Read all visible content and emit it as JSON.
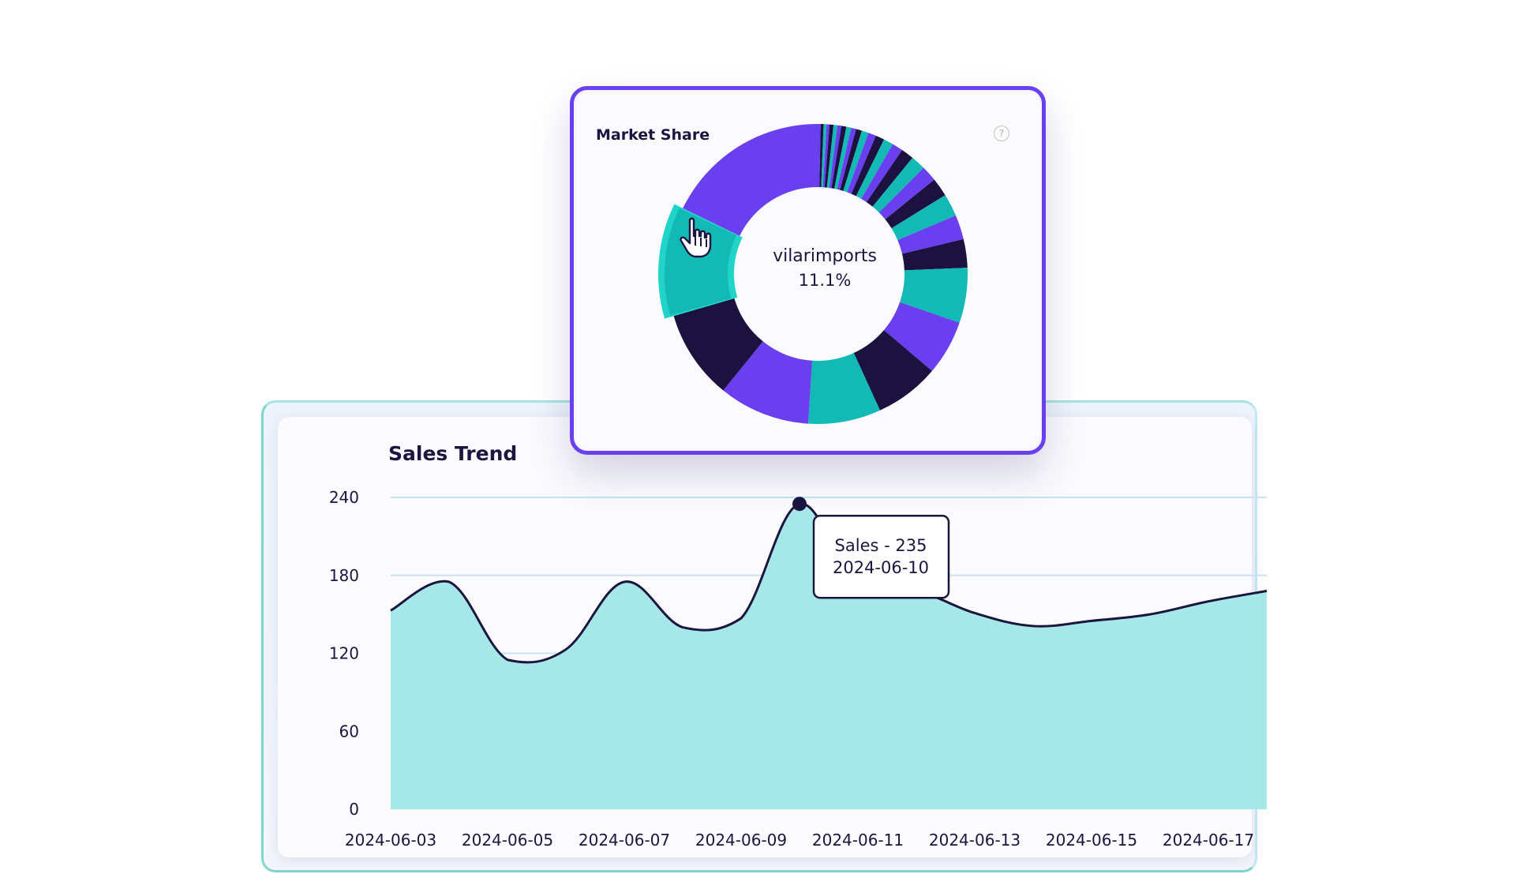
{
  "colors": {
    "purple": "#6a3ff0",
    "navy": "#1b1240",
    "teal": "#13bab5",
    "highlight": "#20d4c8",
    "area_fill": "#a6e8e8",
    "line": "#1b1640",
    "grid": "#c7e3f0"
  },
  "market_share": {
    "title": "Market Share",
    "help_icon": "question-circle-icon",
    "center_label": "vilarimports",
    "center_value": "11.1%",
    "cursor_icon": "hand-pointer-icon"
  },
  "sales_trend": {
    "title": "Sales Trend",
    "tooltip": {
      "label": "Sales - 235",
      "date": "2024-06-10"
    }
  },
  "chart_data": [
    {
      "type": "pie",
      "variant": "donut",
      "title": "Market Share",
      "highlighted": {
        "name": "vilarimports",
        "value": 11.1
      },
      "slices": [
        {
          "value": 0.3,
          "color": "#6a3ff0"
        },
        {
          "value": 0.3,
          "color": "#1b1240"
        },
        {
          "value": 0.3,
          "color": "#13bab5"
        },
        {
          "value": 0.3,
          "color": "#6a3ff0"
        },
        {
          "value": 0.4,
          "color": "#1b1240"
        },
        {
          "value": 0.4,
          "color": "#13bab5"
        },
        {
          "value": 0.4,
          "color": "#6a3ff0"
        },
        {
          "value": 0.5,
          "color": "#1b1240"
        },
        {
          "value": 0.5,
          "color": "#13bab5"
        },
        {
          "value": 0.5,
          "color": "#6a3ff0"
        },
        {
          "value": 0.6,
          "color": "#1b1240"
        },
        {
          "value": 0.7,
          "color": "#13bab5"
        },
        {
          "value": 0.8,
          "color": "#6a3ff0"
        },
        {
          "value": 0.9,
          "color": "#1b1240"
        },
        {
          "value": 1.0,
          "color": "#13bab5"
        },
        {
          "value": 1.1,
          "color": "#6a3ff0"
        },
        {
          "value": 1.3,
          "color": "#1b1240"
        },
        {
          "value": 1.5,
          "color": "#13bab5"
        },
        {
          "value": 1.6,
          "color": "#6a3ff0"
        },
        {
          "value": 1.9,
          "color": "#1b1240"
        },
        {
          "value": 2.3,
          "color": "#13bab5"
        },
        {
          "value": 2.5,
          "color": "#6a3ff0"
        },
        {
          "value": 2.9,
          "color": "#1b1240"
        },
        {
          "value": 5.6,
          "color": "#13bab5"
        },
        {
          "value": 5.6,
          "color": "#6a3ff0"
        },
        {
          "value": 6.6,
          "color": "#1b1240"
        },
        {
          "value": 7.4,
          "color": "#13bab5"
        },
        {
          "value": 9.3,
          "color": "#6a3ff0"
        },
        {
          "value": 9.1,
          "color": "#1b1240"
        },
        {
          "value": 11.1,
          "color": "#13bab5",
          "name": "vilarimports",
          "highlighted": true
        },
        {
          "value": 16.8,
          "color": "#6a3ff0"
        }
      ]
    },
    {
      "type": "area",
      "title": "Sales Trend",
      "x": [
        "2024-06-03",
        "2024-06-04",
        "2024-06-05",
        "2024-06-06",
        "2024-06-07",
        "2024-06-08",
        "2024-06-09",
        "2024-06-10",
        "2024-06-11",
        "2024-06-12",
        "2024-06-13",
        "2024-06-14",
        "2024-06-15",
        "2024-06-16",
        "2024-06-17",
        "2024-06-18"
      ],
      "x_tick_labels": [
        "2024-06-03",
        "2024-06-05",
        "2024-06-07",
        "2024-06-09",
        "2024-06-11",
        "2024-06-13",
        "2024-06-15",
        "2024-06-17"
      ],
      "series": [
        {
          "name": "Sales",
          "values": [
            153,
            175,
            115,
            123,
            175,
            140,
            147,
            235,
            170,
            168,
            151,
            141,
            145,
            150,
            160,
            168
          ]
        }
      ],
      "ylim": [
        0,
        240
      ],
      "y_ticks": [
        0,
        60,
        120,
        180,
        240
      ],
      "grid": true,
      "highlighted_point": {
        "x": "2024-06-10",
        "y": 235
      }
    }
  ]
}
